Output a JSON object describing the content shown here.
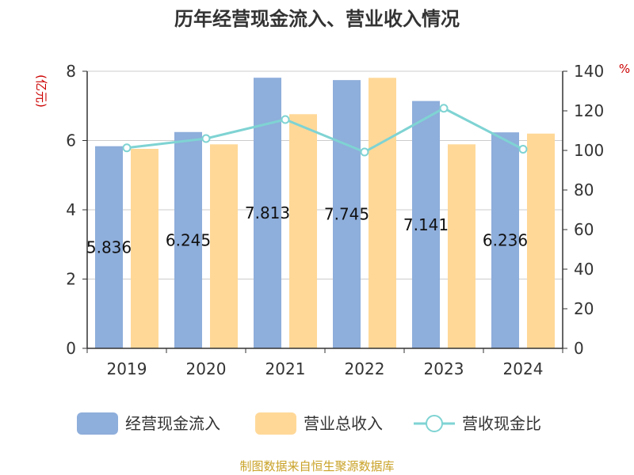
{
  "chart_data": {
    "type": "bar",
    "title": "历年经营现金流入、营业收入情况",
    "categories": [
      "2019",
      "2020",
      "2021",
      "2022",
      "2023",
      "2024"
    ],
    "left_axis": {
      "unit": "(亿元)",
      "ylim": [
        0,
        8
      ],
      "ticks": [
        0,
        2,
        4,
        6,
        8
      ]
    },
    "right_axis": {
      "unit": "%",
      "ylim": [
        0,
        140
      ],
      "ticks": [
        0,
        20,
        40,
        60,
        80,
        100,
        120,
        140
      ]
    },
    "series": [
      {
        "name": "经营现金流入",
        "type": "bar",
        "axis": "left",
        "color": "#8eaedb",
        "values": [
          5.836,
          6.245,
          7.813,
          7.745,
          7.141,
          6.236
        ],
        "labels": [
          "5.836",
          "6.245",
          "7.813",
          "7.745",
          "7.141",
          "6.236"
        ]
      },
      {
        "name": "营业总收入",
        "type": "bar",
        "axis": "left",
        "color": "#ffd898",
        "values": [
          5.76,
          5.89,
          6.76,
          7.81,
          5.89,
          6.2
        ]
      },
      {
        "name": "营收现金比",
        "type": "line",
        "axis": "right",
        "color": "#7fd3d3",
        "values": [
          101.3,
          106.0,
          115.6,
          99.2,
          121.3,
          100.6
        ]
      }
    ],
    "grid": true,
    "legend_position": "bottom"
  },
  "footer": {
    "source": "制图数据来自恒生聚源数据库"
  }
}
